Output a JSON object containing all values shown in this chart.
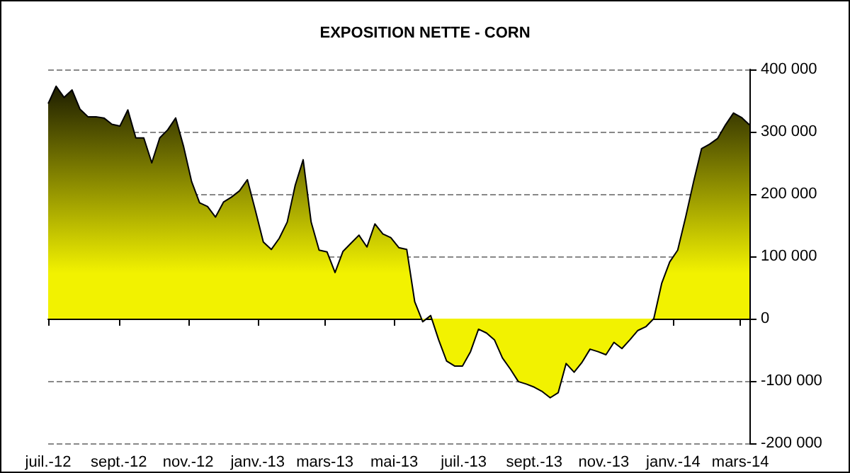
{
  "chart_data": {
    "type": "area",
    "title": "EXPOSITION NETTE - CORN",
    "x": [
      "2012-07-01",
      "2012-07-08",
      "2012-07-15",
      "2012-07-22",
      "2012-07-29",
      "2012-08-05",
      "2012-08-12",
      "2012-08-19",
      "2012-08-26",
      "2012-09-02",
      "2012-09-09",
      "2012-09-16",
      "2012-09-23",
      "2012-09-30",
      "2012-10-07",
      "2012-10-14",
      "2012-10-21",
      "2012-10-28",
      "2012-11-04",
      "2012-11-11",
      "2012-11-18",
      "2012-11-25",
      "2012-12-02",
      "2012-12-09",
      "2012-12-16",
      "2012-12-23",
      "2012-12-30",
      "2013-01-06",
      "2013-01-13",
      "2013-01-20",
      "2013-01-27",
      "2013-02-03",
      "2013-02-10",
      "2013-02-17",
      "2013-02-24",
      "2013-03-03",
      "2013-03-10",
      "2013-03-17",
      "2013-03-24",
      "2013-03-31",
      "2013-04-07",
      "2013-04-14",
      "2013-04-21",
      "2013-04-28",
      "2013-05-05",
      "2013-05-12",
      "2013-05-19",
      "2013-05-26",
      "2013-06-02",
      "2013-06-09",
      "2013-06-16",
      "2013-06-23",
      "2013-06-30",
      "2013-07-07",
      "2013-07-14",
      "2013-07-21",
      "2013-07-28",
      "2013-08-04",
      "2013-08-11",
      "2013-08-18",
      "2013-08-25",
      "2013-09-01",
      "2013-09-08",
      "2013-09-15",
      "2013-09-22",
      "2013-09-29",
      "2013-10-06",
      "2013-10-13",
      "2013-10-20",
      "2013-10-27",
      "2013-11-03",
      "2013-11-10",
      "2013-11-17",
      "2013-11-24",
      "2013-12-01",
      "2013-12-08",
      "2013-12-15",
      "2013-12-22",
      "2013-12-29",
      "2014-01-05",
      "2014-01-12",
      "2014-01-19",
      "2014-01-26",
      "2014-02-02",
      "2014-02-09",
      "2014-02-16",
      "2014-02-23",
      "2014-03-02",
      "2014-03-09"
    ],
    "series": [
      {
        "color": "#f2f200",
        "values": [
          345000,
          373000,
          355000,
          367000,
          336000,
          324000,
          324000,
          322000,
          312000,
          309000,
          335000,
          290000,
          290000,
          250000,
          290000,
          303000,
          322000,
          276000,
          220000,
          186000,
          180000,
          163000,
          187000,
          195000,
          205000,
          223000,
          174000,
          123000,
          111000,
          129000,
          155000,
          214000,
          255000,
          155000,
          110000,
          107000,
          74000,
          108000,
          121000,
          134000,
          115000,
          152000,
          136000,
          130000,
          114000,
          111000,
          27000,
          -5000,
          5000,
          -34000,
          -68000,
          -76000,
          -76000,
          -53000,
          -17000,
          -23000,
          -34000,
          -63000,
          -81000,
          -101000,
          -105000,
          -110000,
          -117000,
          -127000,
          -119000,
          -72000,
          -86000,
          -70000,
          -49000,
          -53000,
          -58000,
          -38000,
          -48000,
          -34000,
          -19000,
          -13000,
          0,
          57000,
          91000,
          110000,
          163000,
          220000,
          273000,
          280000,
          289000,
          311000,
          330000,
          323000,
          311000
        ]
      }
    ],
    "xlim": [
      "2012-07-01",
      "2014-03-09"
    ],
    "xticks": [
      {
        "value": "2012-07-01",
        "label": "juil.-12"
      },
      {
        "value": "2012-09-01",
        "label": "sept.-12"
      },
      {
        "value": "2012-11-01",
        "label": "nov.-12"
      },
      {
        "value": "2013-01-01",
        "label": "janv.-13"
      },
      {
        "value": "2013-03-01",
        "label": "mars-13"
      },
      {
        "value": "2013-05-01",
        "label": "mai-13"
      },
      {
        "value": "2013-07-01",
        "label": "juil.-13"
      },
      {
        "value": "2013-09-01",
        "label": "sept.-13"
      },
      {
        "value": "2013-11-01",
        "label": "nov.-13"
      },
      {
        "value": "2014-01-01",
        "label": "janv.-14"
      },
      {
        "value": "2014-03-01",
        "label": "mars-14"
      }
    ],
    "ylim": [
      -200000,
      400000
    ],
    "yticks": [
      {
        "value": -200000,
        "label": "-200 000"
      },
      {
        "value": -100000,
        "label": "-100 000"
      },
      {
        "value": 0,
        "label": "0"
      },
      {
        "value": 100000,
        "label": "100 000"
      },
      {
        "value": 200000,
        "label": "200 000"
      },
      {
        "value": 300000,
        "label": "300 000"
      },
      {
        "value": 400000,
        "label": "400 000"
      }
    ],
    "grid": "y"
  }
}
